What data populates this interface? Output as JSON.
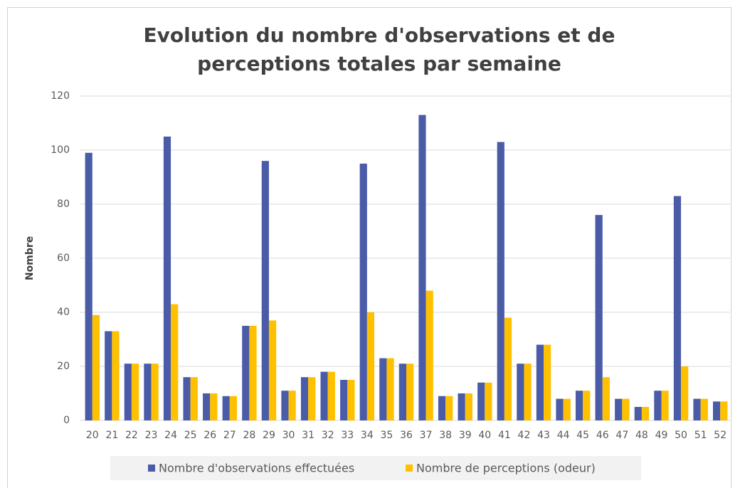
{
  "chart_data": {
    "type": "bar",
    "title": "Evolution du nombre d'observations et de perceptions totales par semaine",
    "y_label": "Nombre",
    "categories": [
      "20",
      "21",
      "22",
      "23",
      "24",
      "25",
      "26",
      "27",
      "28",
      "29",
      "30",
      "31",
      "32",
      "33",
      "34",
      "35",
      "36",
      "37",
      "38",
      "39",
      "40",
      "41",
      "42",
      "43",
      "44",
      "45",
      "46",
      "47",
      "48",
      "49",
      "50",
      "51",
      "52"
    ],
    "series": [
      {
        "name": "Nombre d'observations effectuées",
        "color": "#4a5ba8",
        "values": [
          99,
          33,
          21,
          21,
          105,
          16,
          10,
          9,
          35,
          96,
          11,
          16,
          18,
          15,
          95,
          23,
          21,
          113,
          9,
          10,
          14,
          103,
          21,
          28,
          8,
          11,
          76,
          8,
          5,
          11,
          83,
          8,
          7
        ]
      },
      {
        "name": "Nombre de perceptions (odeur)",
        "color": "#ffc000",
        "values": [
          39,
          33,
          21,
          21,
          43,
          16,
          10,
          9,
          35,
          37,
          11,
          16,
          18,
          15,
          40,
          23,
          21,
          48,
          9,
          10,
          14,
          38,
          21,
          28,
          8,
          11,
          16,
          8,
          5,
          11,
          20,
          8,
          7
        ]
      }
    ],
    "ylim": [
      0,
      120
    ],
    "yticks": [
      0,
      20,
      40,
      60,
      80,
      100,
      120
    ],
    "grid": true,
    "legend": "bottom"
  }
}
